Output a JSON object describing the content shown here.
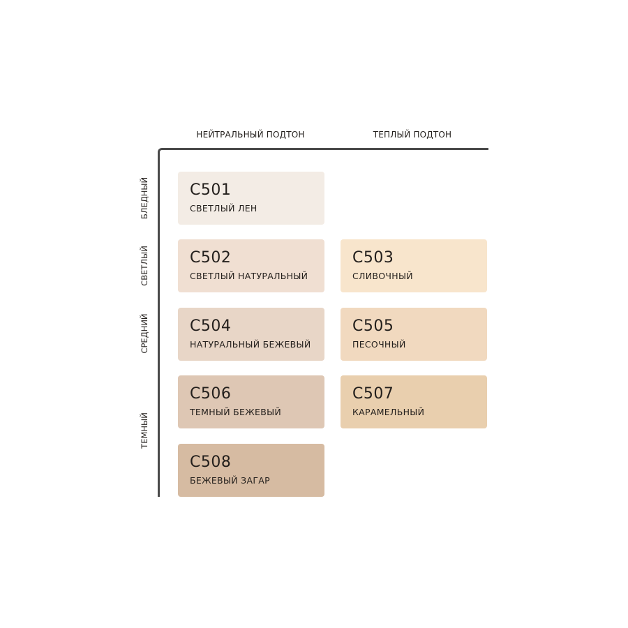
{
  "columns": [
    "НЕЙТРАЛЬНЫЙ ПОДТОН",
    "ТЕПЛЫЙ ПОДТОН"
  ],
  "rows": [
    "БЛЕДНЫЙ",
    "СВЕТЛЫЙ",
    "СРЕДНИЙ",
    "ТЕМНЫЙ"
  ],
  "shades": [
    {
      "code": "C501",
      "name": "СВЕТЛЫЙ ЛЕН",
      "color": "#f3ece5"
    },
    {
      "code": "C502",
      "name": "СВЕТЛЫЙ НАТУРАЛЬНЫЙ",
      "color": "#f0dfd2"
    },
    {
      "code": "C503",
      "name": "СЛИВОЧНЫЙ",
      "color": "#f8e5cc"
    },
    {
      "code": "C504",
      "name": "НАТУРАЛЬНЫЙ БЕЖЕВЫЙ",
      "color": "#e8d6c7"
    },
    {
      "code": "C505",
      "name": "ПЕСОЧНЫЙ",
      "color": "#f1d9bf"
    },
    {
      "code": "C506",
      "name": "ТЕМНЫЙ БЕЖЕВЫЙ",
      "color": "#dec7b4"
    },
    {
      "code": "C507",
      "name": "КАРАМЕЛЬНЫЙ",
      "color": "#e9cfae"
    },
    {
      "code": "C508",
      "name": "БЕЖЕВЫЙ ЗАГАР",
      "color": "#d6bba2"
    }
  ]
}
